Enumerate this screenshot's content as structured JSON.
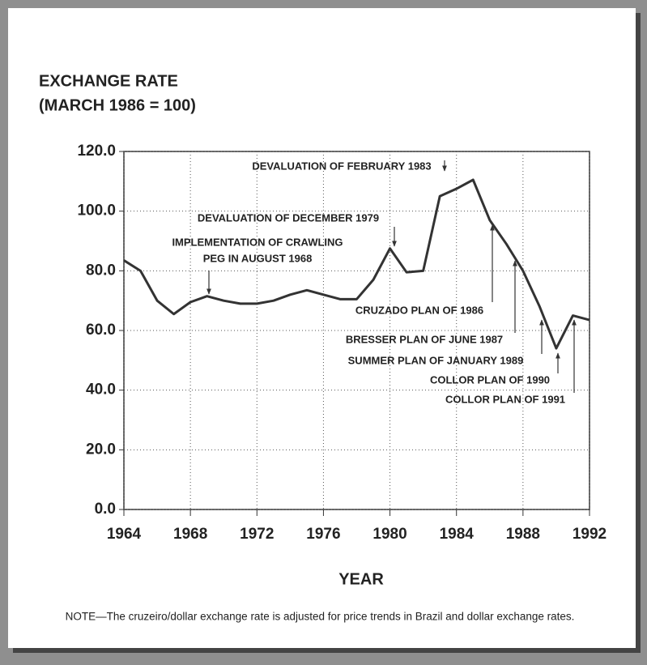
{
  "chart_data": {
    "type": "line",
    "ylabel": [
      "EXCHANGE RATE",
      "(MARCH 1986 = 100)"
    ],
    "xlabel": "YEAR",
    "note": "NOTE—The cruzeiro/dollar exchange rate is adjusted for price trends in Brazil and dollar exchange rates.",
    "x": [
      1964,
      1965,
      1966,
      1967,
      1968,
      1969,
      1970,
      1971,
      1972,
      1973,
      1974,
      1975,
      1976,
      1977,
      1978,
      1979,
      1980,
      1981,
      1982,
      1983,
      1984,
      1985,
      1986,
      1987,
      1988,
      1989,
      1990,
      1991,
      1992
    ],
    "values": [
      83.5,
      80,
      70,
      65.5,
      69.5,
      71.5,
      70,
      69,
      69,
      70,
      72,
      73.5,
      72,
      70.5,
      70.5,
      77,
      87.5,
      79.5,
      80,
      105,
      107.5,
      110.5,
      97,
      89,
      80,
      68,
      54,
      65,
      63.5
    ],
    "color": "#333333",
    "xlim": [
      1964,
      1992
    ],
    "xticks": [
      1964,
      1968,
      1972,
      1976,
      1980,
      1984,
      1988,
      1992
    ],
    "ylim": [
      0,
      120
    ],
    "yticks": [
      {
        "value": 0,
        "label": "0.0"
      },
      {
        "value": 20,
        "label": "20.0"
      },
      {
        "value": 40,
        "label": "40.0"
      },
      {
        "value": 60,
        "label": "60.0"
      },
      {
        "value": 80,
        "label": "80.0"
      },
      {
        "value": 100,
        "label": "100.0"
      },
      {
        "value": 120,
        "label": "120.0"
      }
    ],
    "grid": true,
    "annotations": [
      [
        "DEVALUATION OF FEBRUARY 1983"
      ],
      [
        "DEVALUATION OF DECEMBER 1979"
      ],
      [
        "IMPLEMENTATION OF CRAWLING",
        "PEG IN AUGUST 1968"
      ],
      [
        "CRUZADO PLAN OF 1986"
      ],
      [
        "BRESSER PLAN OF JUNE 1987"
      ],
      [
        "SUMMER PLAN OF JANUARY 1989"
      ],
      [
        "COLLOR PLAN OF 1990"
      ],
      [
        "COLLOR PLAN  OF 1991"
      ]
    ]
  }
}
